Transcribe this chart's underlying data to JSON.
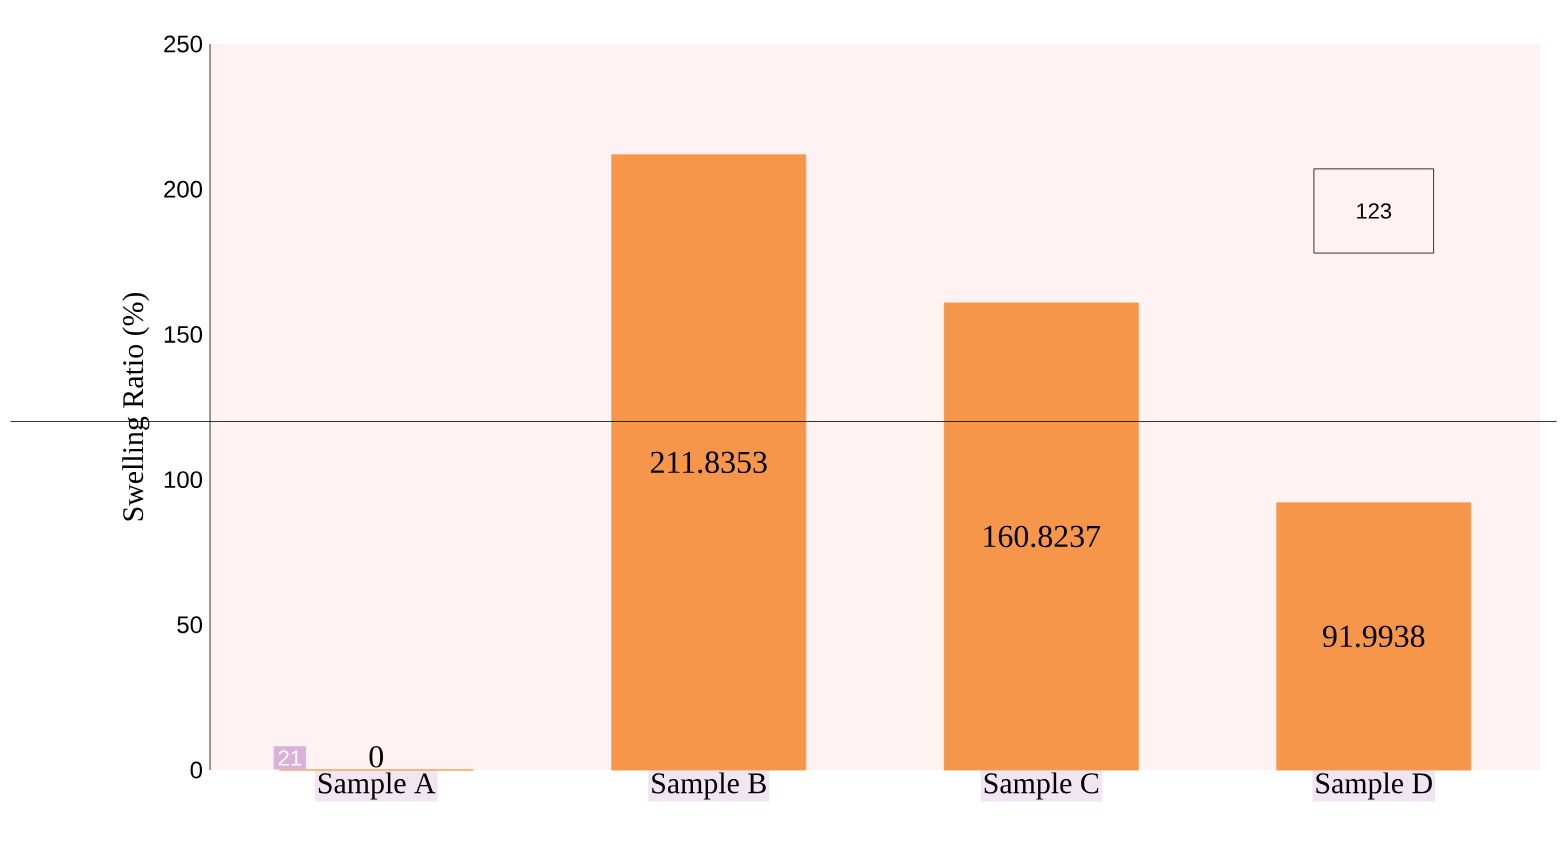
{
  "chart_data": {
    "type": "bar",
    "ylabel": "Swelling Ratio (%)",
    "categories": [
      "Sample A",
      "Sample B",
      "Sample C",
      "Sample D"
    ],
    "values": [
      0,
      211.8353,
      160.8237,
      91.9938
    ],
    "color": "#f5964a",
    "ylim": [
      0,
      250
    ],
    "yticks": [
      0,
      50,
      100,
      150,
      200,
      250
    ],
    "data_labels": true,
    "ref_lines": [
      {
        "axis": "y",
        "value": 120,
        "color": "#000000"
      }
    ],
    "annotations": [
      "21",
      "123"
    ]
  }
}
